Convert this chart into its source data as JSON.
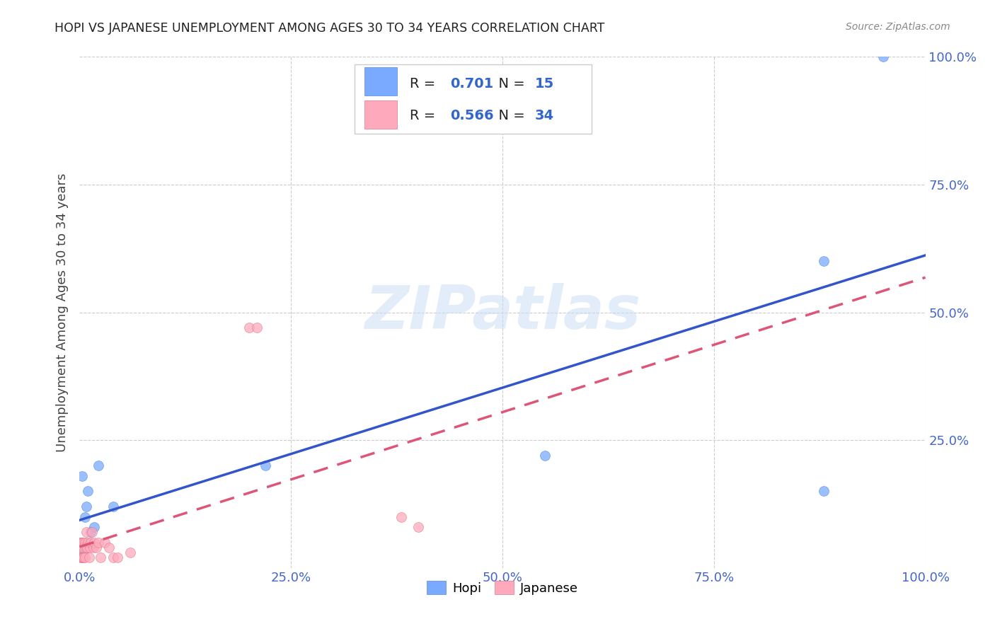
{
  "title": "HOPI VS JAPANESE UNEMPLOYMENT AMONG AGES 30 TO 34 YEARS CORRELATION CHART",
  "source": "Source: ZipAtlas.com",
  "ylabel": "Unemployment Among Ages 30 to 34 years",
  "background_color": "#ffffff",
  "grid_color": "#cccccc",
  "title_color": "#222222",
  "axis_tick_color": "#4466cc",
  "watermark": "ZIPatlas",
  "hopi_color": "#7aaaff",
  "hopi_edge_color": "#5588dd",
  "japanese_color": "#ffaabc",
  "japanese_edge_color": "#dd7788",
  "hopi_R": "0.701",
  "hopi_N": "15",
  "japanese_R": "0.566",
  "japanese_N": "34",
  "hopi_line_color": "#3355cc",
  "japanese_line_color": "#dd5577",
  "legend_color": "#3366cc",
  "hopi_x": [
    0.001,
    0.003,
    0.004,
    0.006,
    0.008,
    0.01,
    0.013,
    0.017,
    0.022,
    0.04,
    0.22,
    0.55,
    0.88,
    0.88,
    0.95
  ],
  "hopi_y": [
    0.05,
    0.18,
    0.03,
    0.1,
    0.12,
    0.15,
    0.07,
    0.08,
    0.2,
    0.12,
    0.2,
    0.22,
    0.6,
    0.15,
    1.0
  ],
  "japanese_x": [
    0.001,
    0.001,
    0.002,
    0.002,
    0.003,
    0.003,
    0.004,
    0.004,
    0.005,
    0.005,
    0.006,
    0.006,
    0.007,
    0.008,
    0.009,
    0.01,
    0.011,
    0.012,
    0.013,
    0.015,
    0.016,
    0.017,
    0.02,
    0.022,
    0.025,
    0.03,
    0.035,
    0.04,
    0.045,
    0.06,
    0.2,
    0.21,
    0.38,
    0.4
  ],
  "japanese_y": [
    0.02,
    0.05,
    0.02,
    0.05,
    0.02,
    0.04,
    0.02,
    0.05,
    0.02,
    0.04,
    0.02,
    0.05,
    0.04,
    0.07,
    0.04,
    0.05,
    0.02,
    0.04,
    0.05,
    0.07,
    0.04,
    0.05,
    0.04,
    0.05,
    0.02,
    0.05,
    0.04,
    0.02,
    0.02,
    0.03,
    0.47,
    0.47,
    0.1,
    0.08
  ],
  "xlim": [
    0.0,
    1.0
  ],
  "ylim": [
    0.0,
    1.0
  ],
  "xticks": [
    0.0,
    0.25,
    0.5,
    0.75,
    1.0
  ],
  "yticks": [
    0.0,
    0.25,
    0.5,
    0.75,
    1.0
  ],
  "xtick_labels": [
    "0.0%",
    "25.0%",
    "50.0%",
    "75.0%",
    "100.0%"
  ],
  "ytick_labels": [
    "",
    "25.0%",
    "50.0%",
    "75.0%",
    "100.0%"
  ],
  "marker_size": 100
}
